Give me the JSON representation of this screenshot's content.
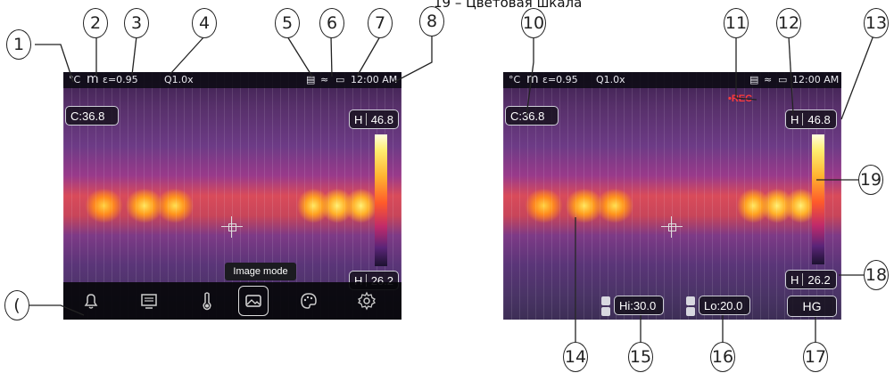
{
  "caption": "19 – Цветовая шкала",
  "callouts": {
    "c1": "1",
    "c2": "2",
    "c3": "3",
    "c4": "4",
    "c5": "5",
    "c6": "6",
    "c7": "7",
    "c8": "8",
    "c_menu": "(",
    "c10": "10",
    "c11": "11",
    "c12": "12",
    "c13": "13",
    "c14": "14",
    "c15": "15",
    "c16": "16",
    "c17": "17",
    "c18": "18",
    "c19": "19"
  },
  "left_screen": {
    "status": {
      "unit": "°C",
      "mode": "m",
      "emissivity": "ε=0.95",
      "zoom": "Q1.0x",
      "time": "12:00 AM"
    },
    "center_label": "C:36.8",
    "high_label": "H",
    "high_value": "46.8",
    "low_label": "H",
    "low_value": "26.2",
    "tooltip": "Image mode",
    "toolbar": [
      "alarm-bell",
      "display-menu",
      "thermometer",
      "image-mode",
      "palette",
      "settings"
    ]
  },
  "right_screen": {
    "status": {
      "unit": "°C",
      "mode": "m",
      "emissivity": "ε=0.95",
      "zoom": "Q1.0x",
      "time": "12:00 AM"
    },
    "rec": "•REC",
    "center_label": "C:36.8",
    "high_label": "H",
    "high_value": "46.8",
    "low_label": "H",
    "low_value": "26.2",
    "hi_setting": "Hi:30.0",
    "lo_setting": "Lo:20.0",
    "hg_button": "HG"
  }
}
